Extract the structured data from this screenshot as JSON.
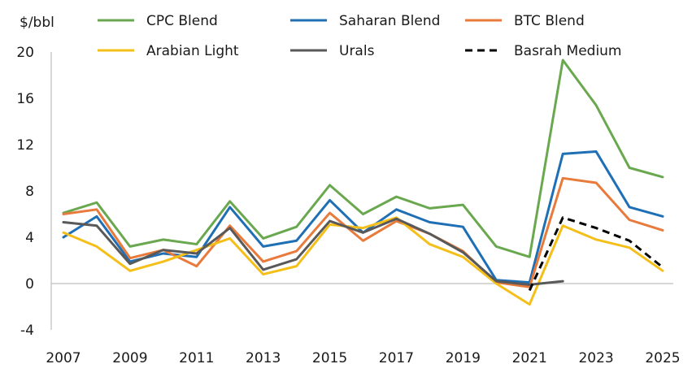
{
  "chart_data": {
    "type": "line",
    "title": "",
    "ylabel": "$/bbl",
    "xlabel": "",
    "ylim": [
      -4,
      20
    ],
    "xlim": [
      2007,
      2025
    ],
    "yticks": [
      -4,
      0,
      4,
      8,
      12,
      16,
      20
    ],
    "xticks": [
      2007,
      2009,
      2011,
      2013,
      2015,
      2017,
      2019,
      2021,
      2023,
      2025
    ],
    "grid": false,
    "legend_position": "top",
    "x": [
      2007,
      2008,
      2009,
      2010,
      2011,
      2012,
      2013,
      2014,
      2015,
      2016,
      2017,
      2018,
      2019,
      2020,
      2021,
      2022,
      2023,
      2024,
      2025
    ],
    "series": [
      {
        "name": "CPC Blend",
        "color": "#6aa84f",
        "dash": "solid",
        "x": [
          2007,
          2008,
          2009,
          2010,
          2011,
          2012,
          2013,
          2014,
          2015,
          2016,
          2017,
          2018,
          2019,
          2020,
          2021,
          2022,
          2023,
          2024,
          2025
        ],
        "values": [
          6.1,
          7.0,
          3.2,
          3.8,
          3.4,
          7.1,
          3.9,
          4.9,
          8.5,
          6.0,
          7.5,
          6.5,
          6.8,
          3.2,
          2.3,
          19.3,
          15.4,
          10.0,
          9.2
        ]
      },
      {
        "name": "Saharan Blend",
        "color": "#1f6fb5",
        "dash": "solid",
        "x": [
          2007,
          2008,
          2009,
          2010,
          2011,
          2012,
          2013,
          2014,
          2015,
          2016,
          2017,
          2018,
          2019,
          2020,
          2021,
          2022,
          2023,
          2024,
          2025
        ],
        "values": [
          4.0,
          5.8,
          1.9,
          2.6,
          2.3,
          6.6,
          3.2,
          3.7,
          7.2,
          4.4,
          6.4,
          5.3,
          4.9,
          0.3,
          0.1,
          11.2,
          11.4,
          6.6,
          5.8
        ]
      },
      {
        "name": "BTC Blend",
        "color": "#e87a3b",
        "dash": "solid",
        "x": [
          2007,
          2008,
          2009,
          2010,
          2011,
          2012,
          2013,
          2014,
          2015,
          2016,
          2017,
          2018,
          2019,
          2020,
          2021,
          2022,
          2023,
          2024,
          2025
        ],
        "values": [
          6.0,
          6.4,
          2.2,
          2.9,
          1.5,
          5.0,
          1.9,
          2.8,
          6.1,
          3.7,
          5.4,
          4.3,
          2.8,
          0.1,
          -0.3,
          9.1,
          8.7,
          5.5,
          4.6
        ]
      },
      {
        "name": "Arabian Light",
        "color": "#f5bf1a",
        "dash": "solid",
        "x": [
          2007,
          2008,
          2009,
          2010,
          2011,
          2012,
          2013,
          2014,
          2015,
          2016,
          2017,
          2018,
          2019,
          2020,
          2021,
          2022,
          2023,
          2024,
          2025
        ],
        "values": [
          4.4,
          3.2,
          1.1,
          1.9,
          2.9,
          3.9,
          0.8,
          1.5,
          5.1,
          4.8,
          5.7,
          3.4,
          2.3,
          0.0,
          -1.8,
          5.0,
          3.8,
          3.1,
          1.1
        ]
      },
      {
        "name": "Urals",
        "color": "#595959",
        "dash": "solid",
        "x": [
          2007,
          2008,
          2009,
          2010,
          2011,
          2012,
          2013,
          2014,
          2015,
          2016,
          2017,
          2018,
          2019,
          2020,
          2021,
          2022
        ],
        "values": [
          5.3,
          5.0,
          1.7,
          2.9,
          2.6,
          4.8,
          1.2,
          2.1,
          5.4,
          4.4,
          5.6,
          4.3,
          2.7,
          0.2,
          -0.1,
          0.2
        ]
      },
      {
        "name": "Basrah Medium",
        "color": "#000000",
        "dash": "dashed",
        "x": [
          2021,
          2022,
          2023,
          2024,
          2025
        ],
        "values": [
          -0.6,
          5.7,
          4.8,
          3.7,
          1.4
        ]
      }
    ]
  }
}
